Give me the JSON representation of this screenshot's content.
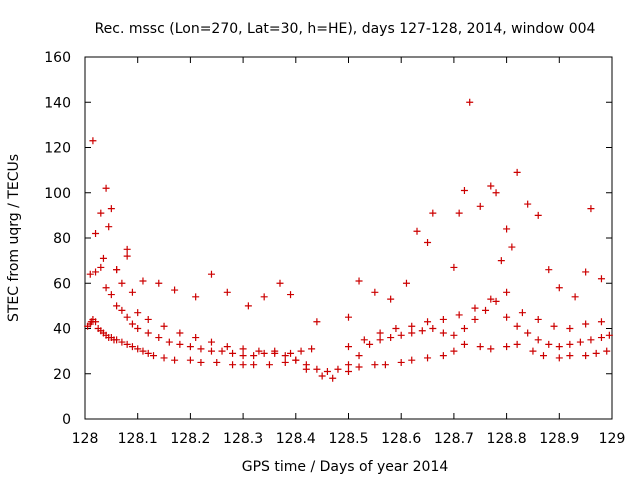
{
  "chart_data": {
    "type": "scatter",
    "title": "Rec. mssc (Lon=270, Lat=30, h=HE), days 127-128, 2014, window 004",
    "xlabel": "GPS time / Days of year 2014",
    "ylabel": "STEC from uqrg / TECUs",
    "xlim": [
      128,
      129
    ],
    "ylim": [
      0,
      160
    ],
    "xticks": [
      "128",
      "128.1",
      "128.2",
      "128.3",
      "128.4",
      "128.5",
      "128.6",
      "128.7",
      "128.8",
      "128.9",
      "129"
    ],
    "yticks": [
      "0",
      "20",
      "40",
      "60",
      "80",
      "100",
      "120",
      "140",
      "160"
    ],
    "grid": false,
    "legend": "none",
    "marker": "plus",
    "colors": {
      "points": "#cc0000",
      "axes": "#000000"
    },
    "series": [
      {
        "x": [
          128.005,
          128.01,
          128.012,
          128.015,
          128.02,
          128.025,
          128.03,
          128.035,
          128.04,
          128.045,
          128.05,
          128.055,
          128.06,
          128.07,
          128.08,
          128.09,
          128.1,
          128.11,
          128.12,
          128.13,
          128.15,
          128.17,
          128.2,
          128.22,
          128.25,
          128.28,
          128.3,
          128.32,
          128.35,
          128.38,
          128.4,
          128.42,
          128.45,
          128.47,
          128.5,
          128.52,
          128.55,
          128.57,
          128.6,
          128.62,
          128.65,
          128.68,
          128.7,
          128.72,
          128.75,
          128.77,
          128.8,
          128.82,
          128.85,
          128.87,
          128.9,
          128.92,
          128.95,
          128.97,
          128.99
        ],
        "y": [
          41,
          42,
          43,
          44,
          43,
          40,
          39,
          38,
          37,
          36,
          36,
          35,
          35,
          34,
          33,
          32,
          31,
          30,
          29,
          28,
          27,
          26,
          26,
          25,
          25,
          24,
          24,
          24,
          24,
          25,
          26,
          22,
          19,
          18,
          21,
          23,
          24,
          24,
          25,
          26,
          27,
          28,
          30,
          33,
          32,
          31,
          32,
          33,
          30,
          28,
          27,
          28,
          28,
          29,
          30
        ]
      },
      {
        "x": [
          128.01,
          128.02,
          128.03,
          128.04,
          128.05,
          128.06,
          128.07,
          128.08,
          128.09,
          128.1,
          128.12,
          128.14,
          128.16,
          128.18,
          128.2,
          128.22,
          128.24,
          128.26,
          128.28,
          128.3,
          128.32,
          128.34,
          128.36,
          128.38,
          128.4,
          128.42,
          128.44,
          128.46,
          128.48,
          128.5,
          128.52,
          128.54,
          128.56,
          128.58,
          128.6,
          128.62,
          128.64,
          128.66,
          128.68,
          128.7,
          128.72,
          128.74,
          128.76,
          128.78,
          128.8,
          128.82,
          128.84,
          128.86,
          128.88,
          128.9,
          128.92,
          128.94,
          128.96,
          128.98,
          128.995
        ],
        "y": [
          64,
          65,
          67,
          58,
          55,
          50,
          48,
          45,
          42,
          40,
          38,
          36,
          34,
          33,
          32,
          31,
          30,
          30,
          29,
          28,
          28,
          29,
          29,
          28,
          26,
          24,
          22,
          21,
          22,
          24,
          28,
          33,
          35,
          36,
          37,
          38,
          39,
          40,
          38,
          37,
          40,
          44,
          48,
          52,
          45,
          41,
          38,
          35,
          33,
          32,
          33,
          34,
          35,
          36,
          37
        ]
      },
      {
        "x": [
          128.02,
          128.03,
          128.04,
          128.05,
          128.06,
          128.07,
          128.08,
          128.09,
          128.1,
          128.12,
          128.15,
          128.18,
          128.21,
          128.24,
          128.27,
          128.3,
          128.33,
          128.36,
          128.39,
          128.41,
          128.43,
          128.5,
          128.53,
          128.56,
          128.59,
          128.62,
          128.65,
          128.68,
          128.71,
          128.74,
          128.77,
          128.8,
          128.83,
          128.86,
          128.89,
          128.92,
          128.95,
          128.98
        ],
        "y": [
          82,
          91,
          102,
          93,
          66,
          60,
          72,
          56,
          47,
          44,
          41,
          38,
          36,
          34,
          32,
          31,
          30,
          30,
          29,
          30,
          31,
          32,
          35,
          38,
          40,
          41,
          43,
          44,
          46,
          49,
          53,
          56,
          47,
          44,
          41,
          40,
          42,
          43
        ]
      },
      {
        "x": [
          128.015,
          128.035,
          128.045,
          128.06,
          128.08,
          128.11,
          128.14,
          128.17,
          128.21,
          128.24,
          128.27,
          128.31,
          128.34,
          128.37,
          128.39,
          128.44,
          128.5,
          128.52,
          128.55,
          128.58,
          128.61,
          128.63,
          128.65,
          128.66,
          128.7,
          128.71,
          128.72,
          128.73,
          128.75,
          128.77,
          128.78,
          128.79,
          128.8,
          128.81,
          128.82,
          128.84,
          128.86,
          128.88,
          128.9,
          128.93,
          128.95,
          128.96,
          128.98
        ],
        "y": [
          123,
          71,
          85,
          66,
          75,
          61,
          60,
          57,
          54,
          64,
          56,
          50,
          54,
          60,
          55,
          43,
          45,
          61,
          56,
          53,
          60,
          83,
          78,
          91,
          67,
          91,
          101,
          140,
          94,
          103,
          100,
          70,
          84,
          76,
          109,
          95,
          90,
          66,
          58,
          54,
          65,
          93,
          62
        ]
      }
    ]
  }
}
